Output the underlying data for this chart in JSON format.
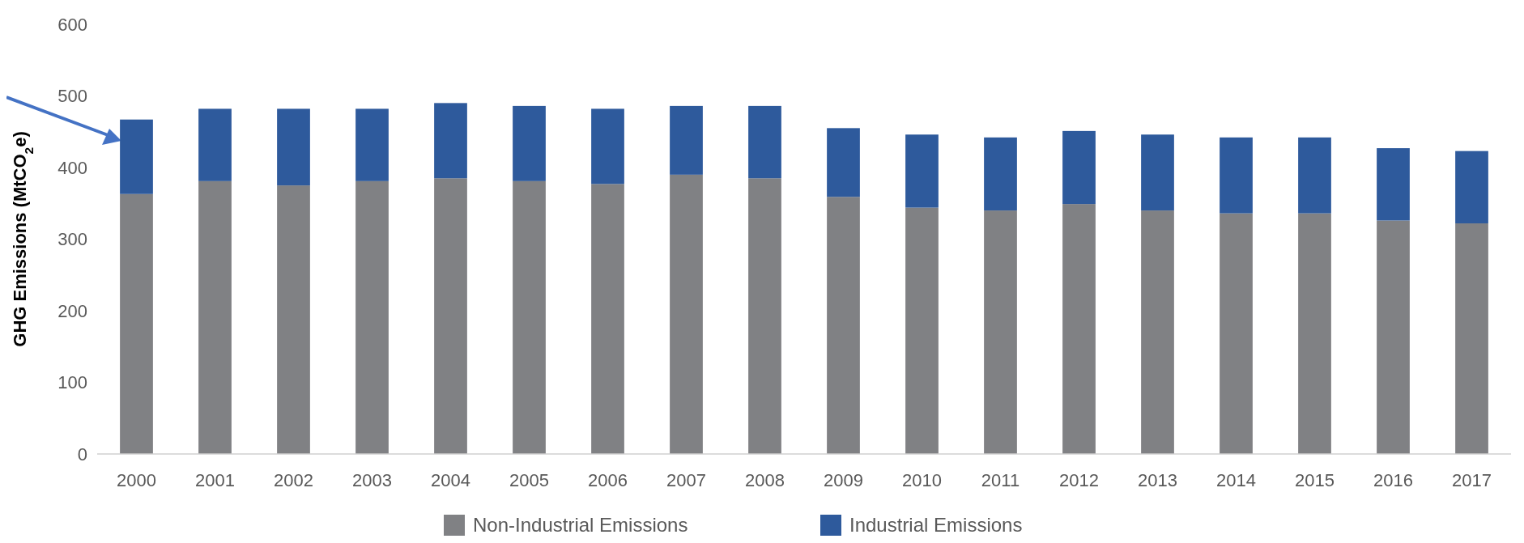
{
  "chart_data": {
    "type": "bar",
    "stacked": true,
    "ylabel": "GHG Emissions (MtCO$_{2}$e)",
    "categories": [
      "2000",
      "2001",
      "2002",
      "2003",
      "2004",
      "2005",
      "2006",
      "2007",
      "2008",
      "2009",
      "2010",
      "2011",
      "2012",
      "2013",
      "2014",
      "2015",
      "2016",
      "2017"
    ],
    "series": [
      {
        "name": "Non-Industrial Emissions",
        "color": "#808184",
        "values": [
          363,
          381,
          375,
          381,
          385,
          381,
          377,
          390,
          385,
          359,
          344,
          340,
          349,
          340,
          336,
          336,
          326,
          322
        ]
      },
      {
        "name": "Industrial Emissions",
        "color": "#2e5a9c",
        "values": [
          104,
          101,
          107,
          101,
          105,
          105,
          105,
          96,
          101,
          96,
          102,
          102,
          102,
          106,
          106,
          106,
          101,
          101
        ]
      }
    ],
    "ylim": [
      0,
      600
    ],
    "yticks": [
      0,
      100,
      200,
      300,
      400,
      500,
      600
    ],
    "grid": false,
    "legend": "bottom"
  }
}
